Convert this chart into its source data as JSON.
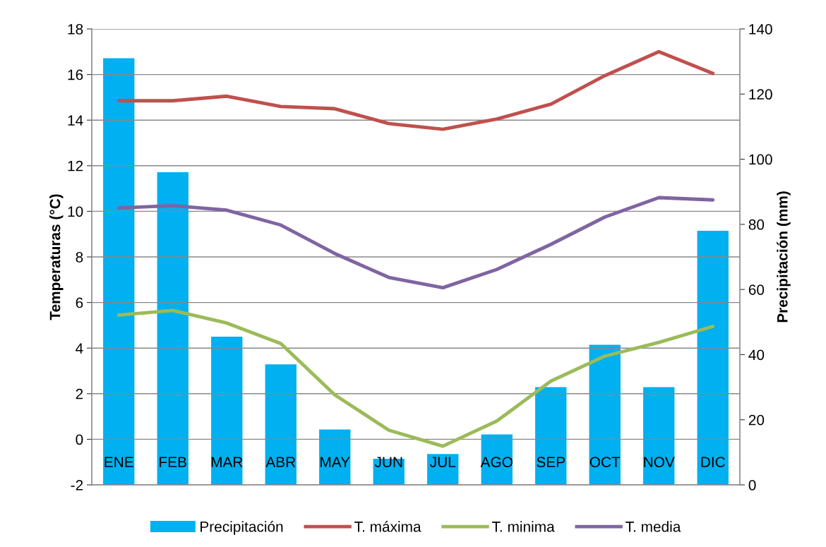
{
  "chart_data": {
    "type": "line",
    "ylabel": "Temperaturas (°C)",
    "y2label": "Precipitación (mm)",
    "categories": [
      "ENE",
      "FEB",
      "MAR",
      "ABR",
      "MAY",
      "JUN",
      "JUL",
      "AGO",
      "SEP",
      "OCT",
      "NOV",
      "DIC"
    ],
    "series": [
      {
        "name": "Precipitación",
        "type": "bar",
        "axis": "y2",
        "color": "#00b0f0",
        "values": [
          131,
          96,
          45.5,
          37,
          17,
          8,
          9.5,
          15.5,
          30,
          43,
          30,
          78
        ]
      },
      {
        "name": "T. máxima",
        "color": "#c0504d",
        "values": [
          14.85,
          14.85,
          15.05,
          14.6,
          14.5,
          13.85,
          13.6,
          14.05,
          14.7,
          15.95,
          17.0,
          16.05
        ]
      },
      {
        "name": "T. minima",
        "color": "#9bbb59",
        "values": [
          5.45,
          5.65,
          5.1,
          4.2,
          1.95,
          0.4,
          -0.3,
          0.8,
          2.55,
          3.65,
          4.25,
          4.95
        ]
      },
      {
        "name": "T. media",
        "color": "#8064a2",
        "values": [
          10.15,
          10.25,
          10.05,
          9.4,
          8.15,
          7.1,
          6.65,
          7.45,
          8.55,
          9.75,
          10.6,
          10.5
        ]
      }
    ],
    "ylim": [
      -2,
      18
    ],
    "yticks": [
      -2,
      0,
      2,
      4,
      6,
      8,
      10,
      12,
      14,
      16,
      18
    ],
    "y2lim": [
      0,
      140
    ],
    "y2ticks": [
      0,
      20,
      40,
      60,
      80,
      100,
      120,
      140
    ],
    "grid": "y",
    "legend": "bottom",
    "marker": "none",
    "line_style": "solid"
  }
}
